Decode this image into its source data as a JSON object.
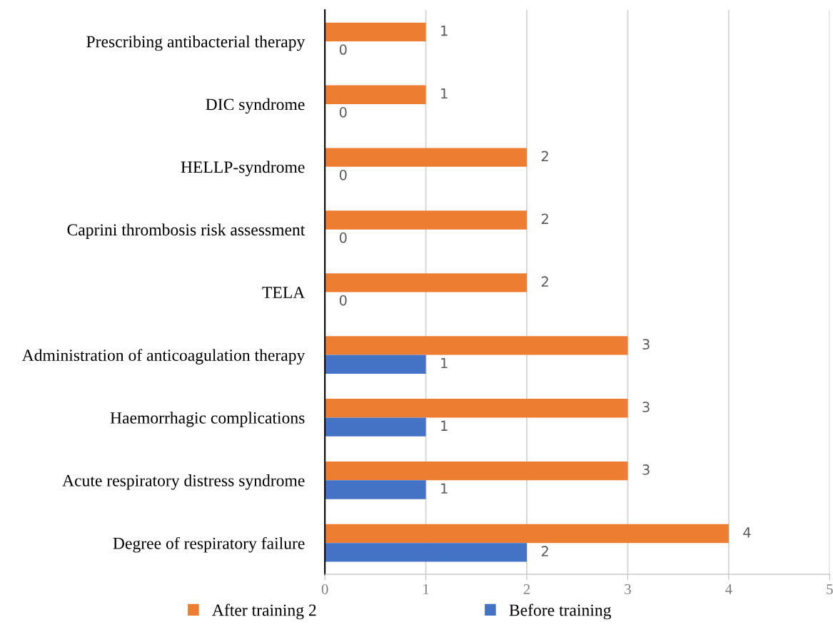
{
  "chart_data": {
    "type": "bar",
    "orientation": "horizontal",
    "categories": [
      "Prescribing antibacterial therapy",
      "DIC syndrome",
      "HELLP-syndrome",
      "Caprini thrombosis risk assessment",
      "TELA",
      "Administration of anticoagulation therapy",
      "Haemorrhagic complications",
      "Acute respiratory distress syndrome",
      "Degree of respiratory failure"
    ],
    "series": [
      {
        "name": "After training 2",
        "color": "#ed7d31",
        "values": [
          1,
          1,
          2,
          2,
          2,
          3,
          3,
          3,
          4
        ]
      },
      {
        "name": "Before training",
        "color": "#4472c4",
        "values": [
          0,
          0,
          0,
          0,
          0,
          1,
          1,
          1,
          2
        ]
      }
    ],
    "xlim": [
      0,
      5
    ],
    "xticks": [
      0,
      1,
      2,
      3,
      4,
      5
    ],
    "grid": "x",
    "legend": "bottom",
    "data_labels": true
  }
}
